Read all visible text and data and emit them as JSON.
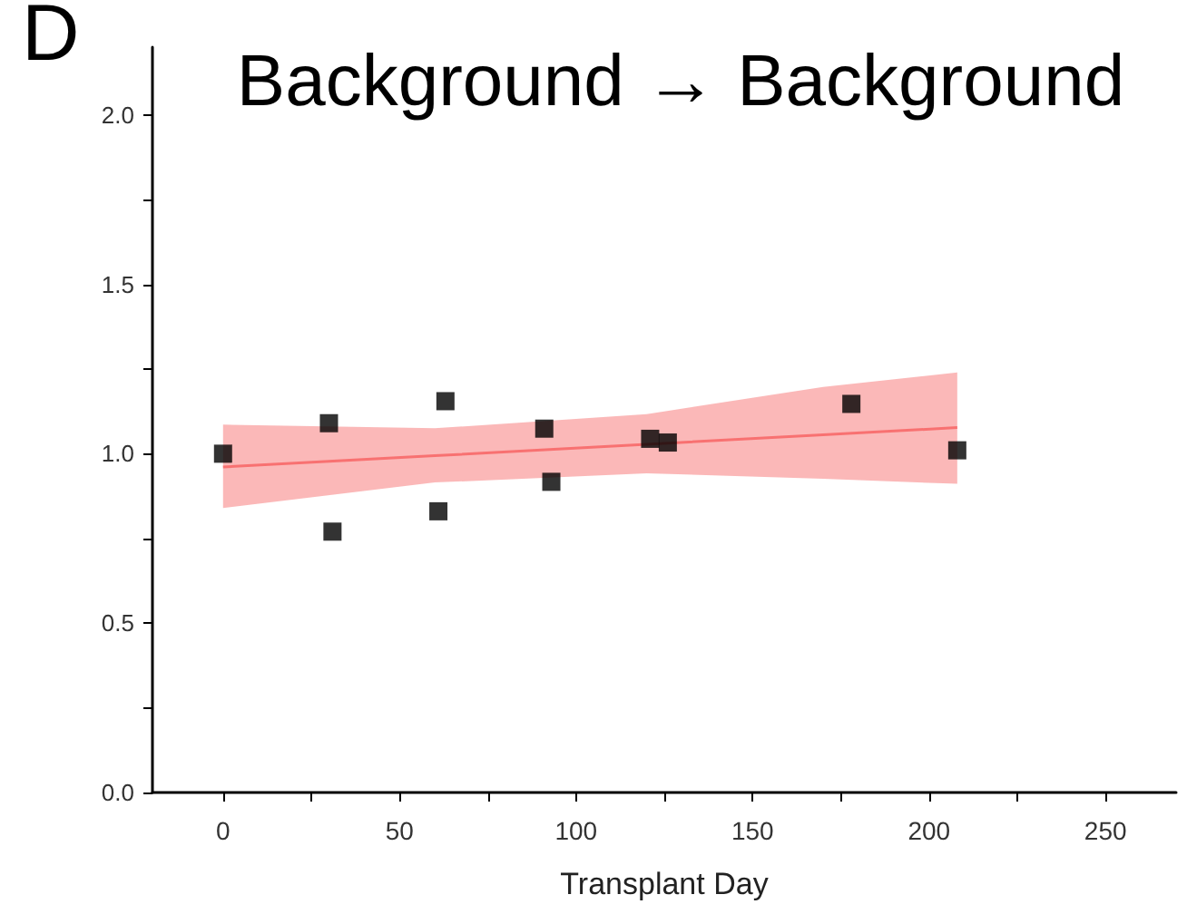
{
  "chart_data": {
    "type": "scatter",
    "title": "Background → Background",
    "xlabel": "Transplant Day",
    "annotations": [
      "D"
    ],
    "xlim": [
      -20,
      270
    ],
    "xticks": [
      0,
      {
        "value": 25,
        "label": null
      },
      50,
      {
        "value": 75,
        "label": null
      },
      100,
      {
        "value": 125,
        "label": null
      },
      150,
      {
        "value": 175,
        "label": null
      },
      200,
      {
        "value": 225,
        "label": null
      },
      250
    ],
    "ylim": [
      0,
      2.2
    ],
    "yticks": [
      "0.0",
      {
        "value": 0.25,
        "label": null
      },
      {
        "value": 0.5,
        "label": "0.5"
      },
      {
        "value": 0.75,
        "label": null
      },
      {
        "value": 1.0,
        "label": "1.0"
      },
      {
        "value": 1.25,
        "label": null
      },
      {
        "value": 1.5,
        "label": "1.5"
      },
      {
        "value": 1.75,
        "label": null
      },
      {
        "value": 2.0,
        "label": "2.0"
      }
    ],
    "grid": false,
    "marker": "square",
    "series": [
      {
        "type": "line",
        "color": "#f87171",
        "marker": "none",
        "x": [
          0,
          60,
          120,
          170,
          208
        ],
        "values": [
          0.961,
          0.994,
          1.028,
          1.056,
          1.077
        ],
        "lower": [
          0.84,
          0.915,
          0.942,
          0.926,
          0.911
        ],
        "upper": [
          1.086,
          1.075,
          1.117,
          1.197,
          1.24
        ]
      },
      {
        "color": "#000000",
        "x": [
          0,
          30,
          31,
          61,
          63,
          91,
          93,
          121,
          126,
          178,
          208
        ],
        "values": [
          1.0,
          1.09,
          0.77,
          0.83,
          1.155,
          1.074,
          0.917,
          1.044,
          1.033,
          1.147,
          1.01
        ]
      }
    ]
  }
}
